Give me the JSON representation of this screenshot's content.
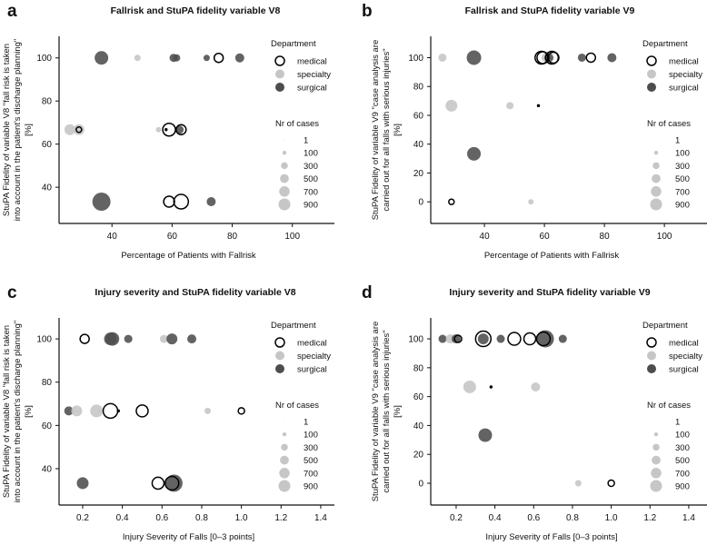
{
  "chart_data": [
    {
      "type": "scatter",
      "letter": "a",
      "title": "Fallrisk and StuPA fidelity variable V8",
      "xlabel": "Percentage of Patients with Fallrisk",
      "ylabel_lines": [
        "StuPA Fidelity of variable V8 \"fall risk is taken",
        "into account in the patient's discharge planning\"",
        "[%]"
      ],
      "xlim": [
        22.4,
        114
      ],
      "ylim": [
        23.2,
        110
      ],
      "xticks": [
        40,
        60,
        80,
        100
      ],
      "xtick_labels": [
        "40",
        "60",
        "80",
        "100"
      ],
      "yticks": [
        40,
        60,
        80,
        100
      ],
      "ytick_labels": [
        "40",
        "60",
        "80",
        "100"
      ],
      "points": [
        {
          "x": 36.5,
          "y": 100,
          "dept": "surgical",
          "n": 1190
        },
        {
          "x": 48.5,
          "y": 100,
          "dept": "specialty",
          "n": 260
        },
        {
          "x": 60.5,
          "y": 100,
          "dept": "surgical",
          "n": 430
        },
        {
          "x": 61.5,
          "y": 100,
          "dept": "surgical",
          "n": 340
        },
        {
          "x": 71.5,
          "y": 100,
          "dept": "surgical",
          "n": 260
        },
        {
          "x": 75.5,
          "y": 100,
          "dept": "medical",
          "n": 530
        },
        {
          "x": 82.5,
          "y": 100,
          "dept": "surgical",
          "n": 530
        },
        {
          "x": 26,
          "y": 66.7,
          "dept": "specialty",
          "n": 760
        },
        {
          "x": 29,
          "y": 66.7,
          "dept": "specialty",
          "n": 760
        },
        {
          "x": 29,
          "y": 66.7,
          "dept": "medical",
          "n": 190
        },
        {
          "x": 55.5,
          "y": 66.7,
          "dept": "specialty",
          "n": 190
        },
        {
          "x": 62.5,
          "y": 66.7,
          "dept": "surgical",
          "n": 430
        },
        {
          "x": 59,
          "y": 66.7,
          "dept": "medical",
          "n": 1040
        },
        {
          "x": 58,
          "y": 66.7,
          "dept": "medical",
          "n": 20
        },
        {
          "x": 63,
          "y": 66.7,
          "dept": "medical",
          "n": 640
        },
        {
          "x": 36.5,
          "y": 33.3,
          "dept": "surgical",
          "n": 2120
        },
        {
          "x": 73,
          "y": 33.3,
          "dept": "surgical",
          "n": 530
        },
        {
          "x": 59,
          "y": 33.3,
          "dept": "medical",
          "n": 760
        },
        {
          "x": 63,
          "y": 33.3,
          "dept": "medical",
          "n": 1360
        }
      ]
    },
    {
      "type": "scatter",
      "letter": "b",
      "title": "Fallrisk and StuPA fidelity variable V9",
      "xlabel": "Percentage of Patients with Fallrisk",
      "ylabel_lines": [
        "StuPA Fidelity of variable V9 \"case analysis are",
        "carried out for all falls with serious injuries\"",
        "[%]"
      ],
      "xlim": [
        22.1,
        114.2
      ],
      "ylim": [
        -15,
        114.8
      ],
      "xticks": [
        40,
        60,
        80,
        100
      ],
      "xtick_labels": [
        "40",
        "60",
        "80",
        "100"
      ],
      "yticks": [
        0,
        20,
        40,
        60,
        80,
        100
      ],
      "ytick_labels": [
        "0",
        "20",
        "40",
        "60",
        "80",
        "100"
      ],
      "points": [
        {
          "x": 26,
          "y": 100,
          "dept": "specialty",
          "n": 430
        },
        {
          "x": 36.5,
          "y": 100,
          "dept": "surgical",
          "n": 1360
        },
        {
          "x": 60.5,
          "y": 100,
          "dept": "specialty",
          "n": 530
        },
        {
          "x": 61.5,
          "y": 100,
          "dept": "surgical",
          "n": 530
        },
        {
          "x": 72.5,
          "y": 100,
          "dept": "surgical",
          "n": 430
        },
        {
          "x": 82.5,
          "y": 100,
          "dept": "surgical",
          "n": 530
        },
        {
          "x": 59,
          "y": 100,
          "dept": "medical",
          "n": 1040
        },
        {
          "x": 59.5,
          "y": 100,
          "dept": "medical",
          "n": 900
        },
        {
          "x": 62.5,
          "y": 100,
          "dept": "medical",
          "n": 1040
        },
        {
          "x": 63,
          "y": 100,
          "dept": "medical",
          "n": 760
        },
        {
          "x": 75.5,
          "y": 100,
          "dept": "medical",
          "n": 530
        },
        {
          "x": 29,
          "y": 66.7,
          "dept": "specialty",
          "n": 900
        },
        {
          "x": 48.5,
          "y": 66.7,
          "dept": "specialty",
          "n": 340
        },
        {
          "x": 58,
          "y": 66.7,
          "dept": "medical",
          "n": 20
        },
        {
          "x": 36.5,
          "y": 33.3,
          "dept": "surgical",
          "n": 1190
        },
        {
          "x": 55.5,
          "y": 0,
          "dept": "specialty",
          "n": 190
        },
        {
          "x": 29,
          "y": 0,
          "dept": "medical",
          "n": 190
        }
      ]
    },
    {
      "type": "scatter",
      "letter": "c",
      "title": "Injury severity and StuPA fidelity variable V8",
      "xlabel": "Injury Severity of Falls [0–3 points]",
      "ylabel_lines": [
        "StuPA Fidelity of variable V8 \"fall risk is taken",
        "into account in the patient's discharge planning\"",
        "[%]"
      ],
      "xlim": [
        0.081,
        1.469
      ],
      "ylim": [
        23.2,
        109.7
      ],
      "xticks": [
        0.2,
        0.4,
        0.6,
        0.8,
        1.0,
        1.2,
        1.4
      ],
      "xtick_labels": [
        "0.2",
        "0.4",
        "0.6",
        "0.8",
        "1.0",
        "1.2",
        "1.4"
      ],
      "yticks": [
        40,
        60,
        80,
        100
      ],
      "ytick_labels": [
        "40",
        "60",
        "80",
        "100"
      ],
      "points": [
        {
          "x": 0.34,
          "y": 100,
          "dept": "surgical",
          "n": 1040
        },
        {
          "x": 0.35,
          "y": 100,
          "dept": "surgical",
          "n": 1190
        },
        {
          "x": 0.43,
          "y": 100,
          "dept": "surgical",
          "n": 430
        },
        {
          "x": 0.61,
          "y": 100,
          "dept": "specialty",
          "n": 430
        },
        {
          "x": 0.65,
          "y": 100,
          "dept": "surgical",
          "n": 760
        },
        {
          "x": 0.75,
          "y": 100,
          "dept": "surgical",
          "n": 530
        },
        {
          "x": 0.21,
          "y": 100,
          "dept": "medical",
          "n": 530
        },
        {
          "x": 0.13,
          "y": 66.7,
          "dept": "surgical",
          "n": 530
        },
        {
          "x": 0.17,
          "y": 66.7,
          "dept": "specialty",
          "n": 760
        },
        {
          "x": 0.27,
          "y": 66.7,
          "dept": "specialty",
          "n": 1040
        },
        {
          "x": 0.83,
          "y": 66.7,
          "dept": "specialty",
          "n": 260
        },
        {
          "x": 0.34,
          "y": 66.7,
          "dept": "medical",
          "n": 1360
        },
        {
          "x": 0.38,
          "y": 66.7,
          "dept": "medical",
          "n": 20
        },
        {
          "x": 0.5,
          "y": 66.7,
          "dept": "medical",
          "n": 900
        },
        {
          "x": 1.0,
          "y": 66.7,
          "dept": "medical",
          "n": 260
        },
        {
          "x": 0.2,
          "y": 33.3,
          "dept": "surgical",
          "n": 900
        },
        {
          "x": 0.66,
          "y": 33.3,
          "dept": "surgical",
          "n": 1910
        },
        {
          "x": 0.58,
          "y": 33.3,
          "dept": "medical",
          "n": 900
        },
        {
          "x": 0.65,
          "y": 33.3,
          "dept": "medical",
          "n": 1190
        }
      ]
    },
    {
      "type": "scatter",
      "letter": "d",
      "title": "Injury severity and StuPA fidelity variable V9",
      "xlabel": "Injury Severity of Falls [0–3 points]",
      "ylabel_lines": [
        "StuPA Fidelity of variable V9 \"case analysis are",
        "carried out for all falls with serious injuries\"",
        "[%]"
      ],
      "xlim": [
        0.069,
        1.494
      ],
      "ylim": [
        -15.1,
        114.5
      ],
      "xticks": [
        0.2,
        0.4,
        0.6,
        0.8,
        1.0,
        1.2,
        1.4
      ],
      "xtick_labels": [
        "0.2",
        "0.4",
        "0.6",
        "0.8",
        "1.0",
        "1.2",
        "1.4"
      ],
      "yticks": [
        0,
        20,
        40,
        60,
        80,
        100
      ],
      "ytick_labels": [
        "0",
        "20",
        "40",
        "60",
        "80",
        "100"
      ],
      "points": [
        {
          "x": 0.13,
          "y": 100,
          "dept": "surgical",
          "n": 430
        },
        {
          "x": 0.17,
          "y": 100,
          "dept": "specialty",
          "n": 530
        },
        {
          "x": 0.2,
          "y": 100,
          "dept": "surgical",
          "n": 530
        },
        {
          "x": 0.34,
          "y": 100,
          "dept": "surgical",
          "n": 760
        },
        {
          "x": 0.43,
          "y": 100,
          "dept": "surgical",
          "n": 430
        },
        {
          "x": 0.66,
          "y": 100,
          "dept": "surgical",
          "n": 1910
        },
        {
          "x": 0.75,
          "y": 100,
          "dept": "surgical",
          "n": 430
        },
        {
          "x": 0.21,
          "y": 100,
          "dept": "medical",
          "n": 340
        },
        {
          "x": 0.34,
          "y": 100,
          "dept": "medical",
          "n": 1530
        },
        {
          "x": 0.5,
          "y": 100,
          "dept": "medical",
          "n": 1040
        },
        {
          "x": 0.58,
          "y": 100,
          "dept": "medical",
          "n": 900
        },
        {
          "x": 0.65,
          "y": 100,
          "dept": "medical",
          "n": 1190
        },
        {
          "x": 0.27,
          "y": 66.7,
          "dept": "specialty",
          "n": 1040
        },
        {
          "x": 0.61,
          "y": 66.7,
          "dept": "specialty",
          "n": 530
        },
        {
          "x": 0.38,
          "y": 66.7,
          "dept": "medical",
          "n": 20
        },
        {
          "x": 0.35,
          "y": 33.3,
          "dept": "surgical",
          "n": 1190
        },
        {
          "x": 0.83,
          "y": 0,
          "dept": "specialty",
          "n": 260
        },
        {
          "x": 1.0,
          "y": 0,
          "dept": "medical",
          "n": 260
        }
      ]
    }
  ],
  "legend": {
    "department_title": "Department",
    "departments": [
      {
        "key": "medical",
        "label": "medical"
      },
      {
        "key": "specialty",
        "label": "specialty"
      },
      {
        "key": "surgical",
        "label": "surgical"
      }
    ],
    "size_title": "Nr of cases",
    "sizes": [
      {
        "n": 1,
        "label": "1"
      },
      {
        "n": 100,
        "label": "100"
      },
      {
        "n": 300,
        "label": "300"
      },
      {
        "n": 500,
        "label": "500"
      },
      {
        "n": 700,
        "label": "700"
      },
      {
        "n": 900,
        "label": "900"
      }
    ]
  },
  "colors": {
    "medical_stroke": "#000000",
    "medical_fill": "#ffffff",
    "specialty": "#c6c6c6",
    "surgical": "#4d4d4d",
    "axis": "#111111"
  }
}
